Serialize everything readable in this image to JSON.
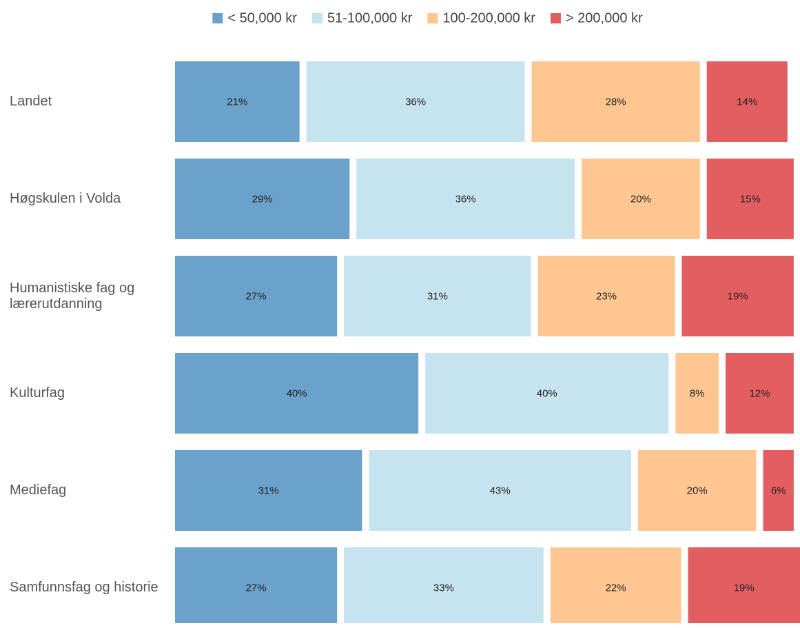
{
  "chart_data": {
    "type": "stacked-bar-horizontal",
    "categories": [
      "Landet",
      "Høgskulen i Volda",
      "Humanistiske fag og lærerutdanning",
      "Kulturfag",
      "Mediefag",
      "Samfunnsfag og historie"
    ],
    "series": [
      {
        "name": "< 50,000 kr",
        "color": "#6aa2cb",
        "values": [
          21,
          29,
          27,
          40,
          31,
          27
        ],
        "value_labels": [
          "21%",
          "29%",
          "27%",
          "40%",
          "31%",
          "27%"
        ]
      },
      {
        "name": "51-100,000 kr",
        "color": "#c5e4ef",
        "values": [
          36,
          36,
          31,
          40,
          43,
          33
        ],
        "value_labels": [
          "36%",
          "36%",
          "31%",
          "40%",
          "43%",
          "33%"
        ]
      },
      {
        "name": "100-200,000 kr",
        "color": "#fec791",
        "values": [
          28,
          20,
          23,
          8,
          20,
          22
        ],
        "value_labels": [
          "28%",
          "20%",
          "23%",
          "8%",
          "20%",
          "22%"
        ]
      },
      {
        "name": "> 200,000 kr",
        "color": "#e35e61",
        "values": [
          14,
          15,
          19,
          12,
          6,
          19
        ],
        "value_labels": [
          "14%",
          "15%",
          "19%",
          "12%",
          "6%",
          "19%"
        ]
      }
    ],
    "legend": "top"
  }
}
